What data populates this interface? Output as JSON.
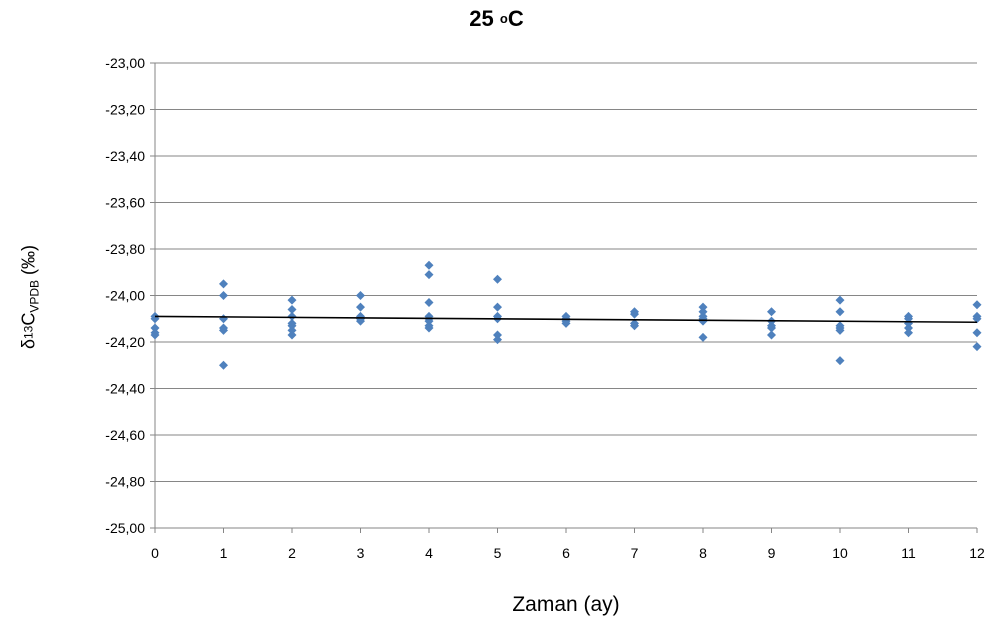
{
  "chart_data": {
    "type": "scatter",
    "title": {
      "main": "25 ",
      "superscript": "o",
      "suffix": "C"
    },
    "xlabel": "Zaman (ay)",
    "ylabel": {
      "prefix": "δ",
      "superscript": "13",
      "main": "C",
      "subscript": "VPDB",
      "suffix": " (‰)"
    },
    "xlim": [
      0,
      12
    ],
    "ylim": [
      -25.0,
      -23.0
    ],
    "x_ticks": [
      "0",
      "1",
      "2",
      "3",
      "4",
      "5",
      "6",
      "7",
      "8",
      "9",
      "10",
      "11",
      "12"
    ],
    "y_ticks": [
      "-23,00",
      "-23,20",
      "-23,40",
      "-23,60",
      "-23,80",
      "-24,00",
      "-24,20",
      "-24,40",
      "-24,60",
      "-24,80",
      "-25,00"
    ],
    "y_tick_values": [
      -23.0,
      -23.2,
      -23.4,
      -23.6,
      -23.8,
      -24.0,
      -24.2,
      -24.4,
      -24.6,
      -24.8,
      -25.0
    ],
    "grid": "horizontal",
    "legend": "none",
    "marker": "diamond",
    "marker_color": "#4f81bd",
    "trendline": {
      "type": "linear",
      "color": "#000000",
      "x": [
        0,
        12
      ],
      "y": [
        -24.09,
        -24.115
      ]
    },
    "series": [
      {
        "x": [
          0,
          0,
          0,
          0,
          0,
          1,
          1,
          1,
          1,
          1,
          1,
          2,
          2,
          2,
          2,
          2,
          2,
          2,
          3,
          3,
          3,
          3,
          3,
          3,
          4,
          4,
          4,
          4,
          4,
          4,
          4,
          4,
          5,
          5,
          5,
          5,
          5,
          5,
          6,
          6,
          6,
          6,
          7,
          7,
          7,
          7,
          8,
          8,
          8,
          8,
          8,
          8,
          9,
          9,
          9,
          9,
          9,
          10,
          10,
          10,
          10,
          10,
          10,
          11,
          11,
          11,
          11,
          11,
          12,
          12,
          12,
          12,
          12
        ],
        "y": [
          -24.09,
          -24.1,
          -24.14,
          -24.16,
          -24.17,
          -23.95,
          -24.0,
          -24.1,
          -24.14,
          -24.15,
          -24.3,
          -24.02,
          -24.06,
          -24.09,
          -24.12,
          -24.13,
          -24.15,
          -24.17,
          -24.0,
          -24.05,
          -24.09,
          -24.1,
          -24.1,
          -24.11,
          -23.87,
          -23.91,
          -24.03,
          -24.09,
          -24.1,
          -24.11,
          -24.13,
          -24.14,
          -23.93,
          -24.05,
          -24.09,
          -24.1,
          -24.17,
          -24.19,
          -24.09,
          -24.1,
          -24.11,
          -24.12,
          -24.07,
          -24.08,
          -24.12,
          -24.13,
          -24.05,
          -24.07,
          -24.09,
          -24.1,
          -24.11,
          -24.18,
          -24.07,
          -24.11,
          -24.13,
          -24.14,
          -24.17,
          -24.02,
          -24.07,
          -24.13,
          -24.14,
          -24.15,
          -24.28,
          -24.09,
          -24.1,
          -24.12,
          -24.14,
          -24.16,
          -24.04,
          -24.09,
          -24.1,
          -24.16,
          -24.22
        ]
      }
    ]
  }
}
